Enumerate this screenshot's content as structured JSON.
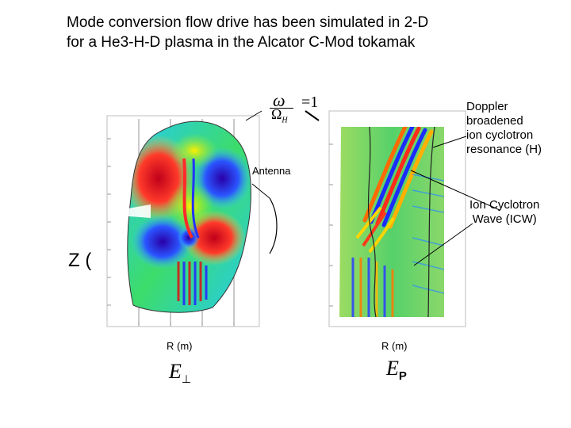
{
  "title_line1": "Mode conversion flow drive has been simulated in 2-D",
  "title_line2": "for a He3-H-D plasma in the Alcator C-Mod tokamak",
  "resonance_formula": {
    "numerator": "ω",
    "denominator": "Ω",
    "denominator_sub": "H",
    "rhs": "=1"
  },
  "labels": {
    "doppler": [
      "Doppler",
      "broadened",
      "ion cyclotron",
      "resonance (H)"
    ],
    "antenna": "Antenna",
    "icw": [
      "Ion Cyclotron",
      "Wave (ICW)"
    ],
    "z_axis": "Z (",
    "r_left": "R (m)",
    "r_right": "R (m)",
    "e_perp": "E",
    "e_perp_sub": "⊥",
    "e_par": "E",
    "e_par_sub": "P"
  }
}
